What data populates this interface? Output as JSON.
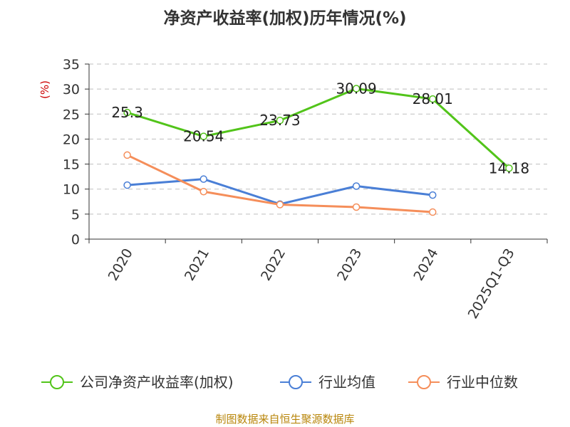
{
  "chart_data": {
    "type": "line",
    "title": "净资产收益率(加权)历年情况(%)",
    "ylabel": "(%)",
    "categories": [
      "2020",
      "2021",
      "2022",
      "2023",
      "2024",
      "2025Q1-Q3"
    ],
    "ylim": [
      0,
      35
    ],
    "yticks": [
      0,
      5,
      10,
      15,
      20,
      25,
      30,
      35
    ],
    "grid": true,
    "legend_position": "bottom",
    "series": [
      {
        "name": "公司净资产收益率(加权)",
        "color": "#52c41a",
        "values": [
          25.3,
          20.54,
          23.73,
          30.09,
          28.01,
          14.18
        ],
        "labels": [
          "25.3",
          "20.54",
          "23.73",
          "30.09",
          "28.01",
          "14.18"
        ],
        "show_labels": true
      },
      {
        "name": "行业均值",
        "color": "#4a7fd6",
        "values": [
          10.8,
          12.0,
          7.0,
          10.6,
          8.8,
          null
        ],
        "show_labels": false
      },
      {
        "name": "行业中位数",
        "color": "#f58e5a",
        "values": [
          16.8,
          9.5,
          6.9,
          6.4,
          5.4,
          null
        ],
        "show_labels": false
      }
    ]
  },
  "source_text": "制图数据来自恒生聚源数据库"
}
